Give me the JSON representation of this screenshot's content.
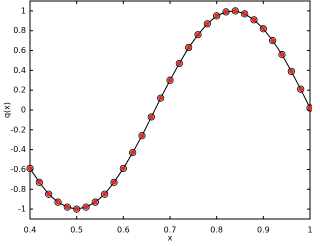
{
  "chart_data": {
    "type": "line",
    "x": [
      0.4,
      0.42,
      0.44,
      0.46,
      0.48,
      0.5,
      0.52,
      0.54,
      0.56,
      0.58,
      0.6,
      0.62,
      0.64,
      0.66,
      0.68,
      0.7,
      0.72,
      0.74,
      0.76,
      0.78,
      0.8,
      0.82,
      0.84,
      0.86,
      0.88,
      0.9,
      0.92,
      0.94,
      0.96,
      0.98,
      1
    ],
    "series": [
      {
        "color": "#000000",
        "values": [
          -0.59,
          -0.73,
          -0.85,
          -0.93,
          -0.98,
          -1,
          -0.98,
          -0.93,
          -0.85,
          -0.73,
          -0.59,
          -0.43,
          -0.26,
          -0.07,
          0.12,
          0.3,
          0.47,
          0.63,
          0.76,
          0.87,
          0.95,
          0.99,
          1,
          0.97,
          0.91,
          0.82,
          0.7,
          0.56,
          0.39,
          0.21,
          0.02
        ]
      },
      {
        "color": "#e8281e",
        "values": [
          -0.59,
          -0.73,
          -0.85,
          -0.93,
          -0.98,
          -1,
          -0.98,
          -0.93,
          -0.85,
          -0.73,
          -0.59,
          -0.43,
          -0.26,
          -0.07,
          0.12,
          0.3,
          0.47,
          0.63,
          0.76,
          0.87,
          0.95,
          0.99,
          1,
          0.97,
          0.91,
          0.82,
          0.7,
          0.56,
          0.39,
          0.21,
          0.02
        ]
      }
    ],
    "xlabel": "x",
    "ylabel": "q(x)",
    "xlim": [
      0.4,
      1
    ],
    "xticks": [
      0.4,
      0.5,
      0.6,
      0.7,
      0.8,
      0.9,
      1
    ],
    "ylim": [
      -1.1,
      1.1
    ],
    "yticks": [
      -1,
      -0.8,
      -0.6,
      -0.4,
      -0.2,
      0,
      0.2,
      0.4,
      0.6,
      0.8,
      1
    ]
  }
}
